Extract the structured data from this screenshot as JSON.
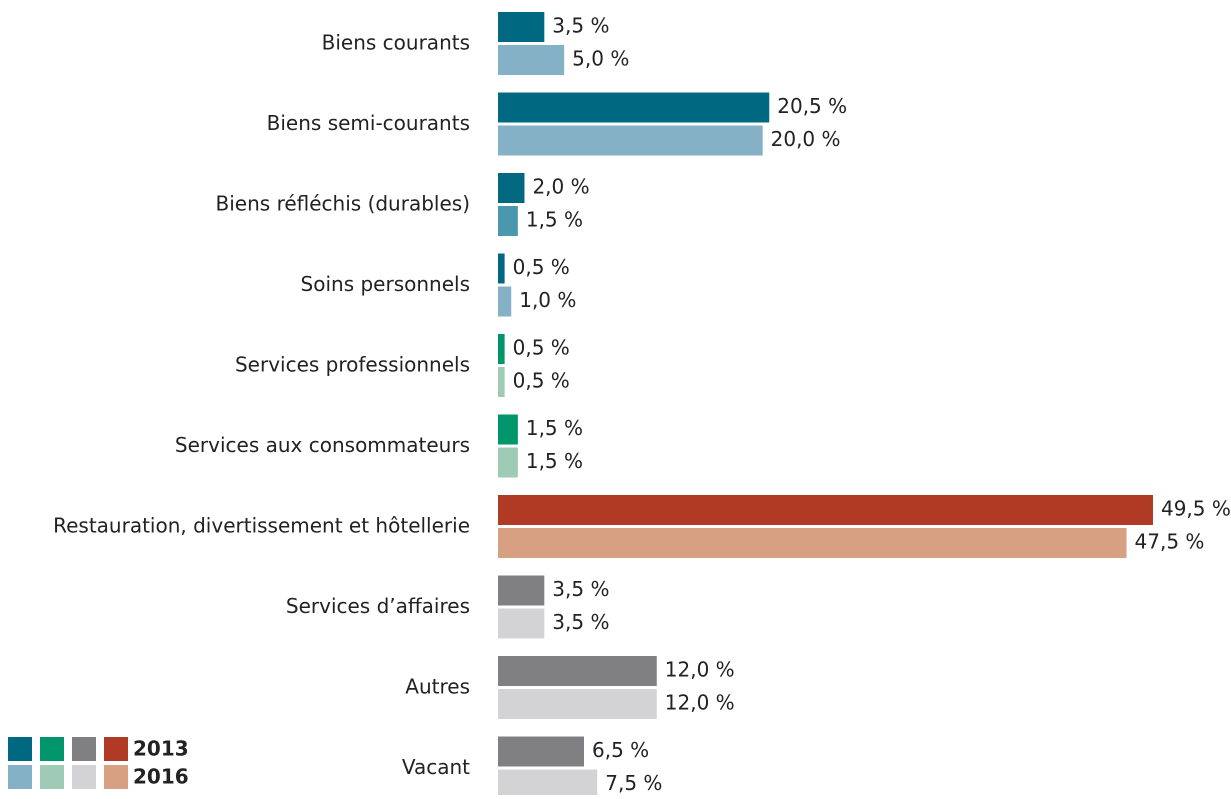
{
  "chart_data": {
    "type": "barh",
    "categories": [
      "Biens courants",
      "Biens semi-courants",
      "Biens réfléchis (durables)",
      "Soins personnels",
      "Services professionnels",
      "Services aux consommateurs",
      "Restauration, divertissement et hôtellerie",
      "Services d’affaires",
      "Autres",
      "Vacant"
    ],
    "series": [
      {
        "name": "2013",
        "values": [
          3.5,
          20.5,
          2.0,
          0.5,
          0.5,
          1.5,
          49.5,
          3.5,
          12.0,
          6.5
        ],
        "value_labels": [
          "3,5 %",
          "20,5 %",
          "2,0 %",
          "0,5 %",
          "0,5 %",
          "1,5 %",
          "49,5 %",
          "3,5 %",
          "12,0 %",
          "6,5 %"
        ],
        "colors": [
          "#006880",
          "#006880",
          "#006880",
          "#006880",
          "#00956a",
          "#00956a",
          "#b03a24",
          "#808083",
          "#808083",
          "#808083"
        ],
        "legend_colors": [
          "#006880",
          "#00956a",
          "#808083",
          "#b03a24"
        ]
      },
      {
        "name": "2016",
        "values": [
          5.0,
          20.0,
          1.5,
          1.0,
          0.5,
          1.5,
          47.5,
          3.5,
          12.0,
          7.5
        ],
        "value_labels": [
          "5,0 %",
          "20,0 %",
          "1,5 %",
          "1,0 %",
          "0,5 %",
          "1,5 %",
          "47,5 %",
          "3,5 %",
          "12,0 %",
          "7,5 %"
        ],
        "colors": [
          "#84b1c5",
          "#84b1c5",
          "#4b97ad",
          "#84b1c5",
          "#9fcab6",
          "#9fcab6",
          "#d8a083",
          "#d3d3d5",
          "#d3d3d5",
          "#d3d3d5"
        ],
        "legend_colors": [
          "#84b1c5",
          "#9fcab6",
          "#d3d3d5",
          "#d8a083"
        ]
      }
    ],
    "xlim": [
      0,
      50
    ]
  }
}
